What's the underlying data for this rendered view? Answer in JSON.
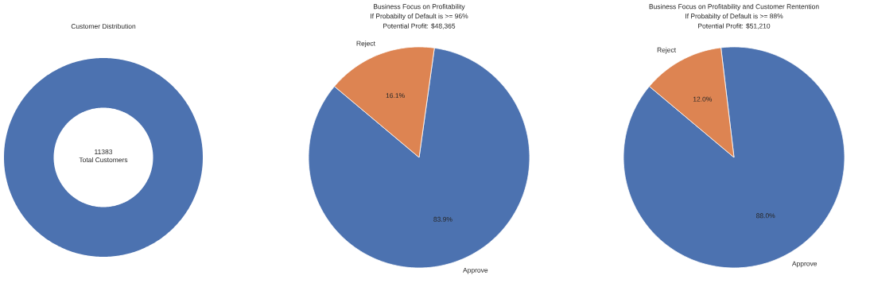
{
  "chart_data": [
    {
      "type": "donut",
      "title": "Customer Distribution",
      "categories": [
        null
      ],
      "values": [
        11383
      ],
      "colors": [
        "#4c72b0"
      ],
      "data_labels": true,
      "annotations": [
        "Total Customers"
      ]
    },
    {
      "type": "pie",
      "title": "Business Focus on Profitability",
      "subtitle": "If Probabilty of Default is >= 96%",
      "annotations": [
        "Potential Profit: $48,365"
      ],
      "categories": [
        "Approve",
        "Reject"
      ],
      "values": [
        83.9,
        16.1
      ],
      "colors": [
        "#4c72b0",
        "#dd8452"
      ],
      "value_labels": [
        "83.9%",
        "16.1%"
      ]
    },
    {
      "type": "pie",
      "title": "Business Focus on Profitability and Customer Rentention",
      "subtitle": "If Probabilty of Default is >= 88%",
      "annotations": [
        "Potential Profit: $51,210"
      ],
      "categories": [
        "Approve",
        "Reject"
      ],
      "values": [
        88.0,
        12.0
      ],
      "colors": [
        "#4c72b0",
        "#dd8452"
      ],
      "value_labels": [
        "88.0%",
        "12.0%"
      ]
    }
  ]
}
